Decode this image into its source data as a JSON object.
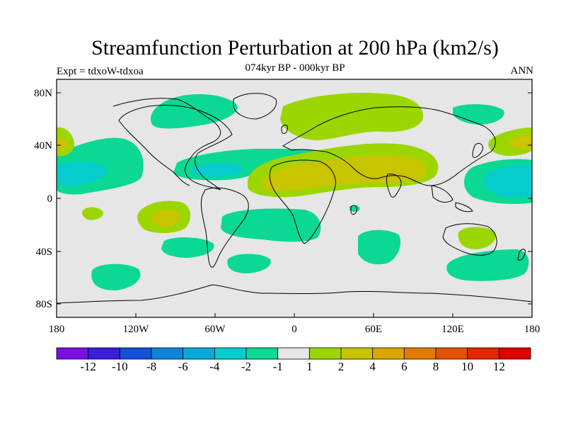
{
  "header": {
    "title": "Streamfunction Perturbation at 200 hPa (km2/s)",
    "subtitle": "074kyr BP - 000kyr BP",
    "expt": "Expt = tdxoW-tdxoa",
    "season": "ANN"
  },
  "axes": {
    "y_ticks": [
      "80N",
      "40N",
      "0",
      "40S",
      "80S"
    ],
    "x_ticks": [
      "180",
      "120W",
      "60W",
      "0",
      "60E",
      "120E",
      "180"
    ]
  },
  "colorbar": {
    "labels": [
      "-12",
      "-10",
      "-8",
      "-6",
      "-4",
      "-2",
      "-1",
      "1",
      "2",
      "4",
      "6",
      "8",
      "10",
      "12"
    ],
    "colors": [
      "#7a10e0",
      "#3a1ed8",
      "#1450d8",
      "#0a84dc",
      "#08aadc",
      "#06ccd0",
      "#0ad894",
      "#e6e6e6",
      "#9cd600",
      "#c8c400",
      "#dca600",
      "#e27a00",
      "#e45200",
      "#e22600",
      "#e00000"
    ]
  },
  "chart_data": {
    "type": "map",
    "projection": "cylindrical equidistant",
    "lon_range": [
      -180,
      180
    ],
    "lat_range": [
      -90,
      90
    ],
    "background_color": "#e6e6e6",
    "contour_levels": [
      -12,
      -10,
      -8,
      -6,
      -4,
      -2,
      -1,
      1,
      2,
      4,
      6,
      8,
      10,
      12
    ],
    "features": [
      {
        "name": "north-pacific-negative",
        "lon": -145,
        "lat": 20,
        "level": -2
      },
      {
        "name": "north-pacific-core",
        "lon": -165,
        "lat": 20,
        "level": -4
      },
      {
        "name": "caribbean-negative",
        "lon": -65,
        "lat": 20,
        "level": -2
      },
      {
        "name": "north-africa-asia-positive",
        "lon": 40,
        "lat": 20,
        "level": 2
      },
      {
        "name": "arabia-core",
        "lon": 40,
        "lat": 20,
        "level": 4
      },
      {
        "name": "west-pacific-negative",
        "lon": 150,
        "lat": 18,
        "level": -2
      },
      {
        "name": "west-pacific-core",
        "lon": 155,
        "lat": 16,
        "level": -4
      },
      {
        "name": "eurasia-north-positive",
        "lon": 10,
        "lat": 67,
        "level": 2
      },
      {
        "name": "greenland-negative",
        "lon": -70,
        "lat": 65,
        "level": -2
      },
      {
        "name": "southeast-pacific-positive",
        "lon": -100,
        "lat": -16,
        "level": 2
      },
      {
        "name": "south-atlantic-negative",
        "lon": -30,
        "lat": -20,
        "level": -2
      },
      {
        "name": "australia-positive",
        "lon": 140,
        "lat": -28,
        "level": 2
      },
      {
        "name": "south-indian-negative",
        "lon": 25,
        "lat": -40,
        "level": -2
      },
      {
        "name": "southern-pacific-negative",
        "lon": -140,
        "lat": -58,
        "level": -2
      },
      {
        "name": "south-of-nz-negative",
        "lon": 150,
        "lat": -48,
        "level": -2
      }
    ]
  }
}
